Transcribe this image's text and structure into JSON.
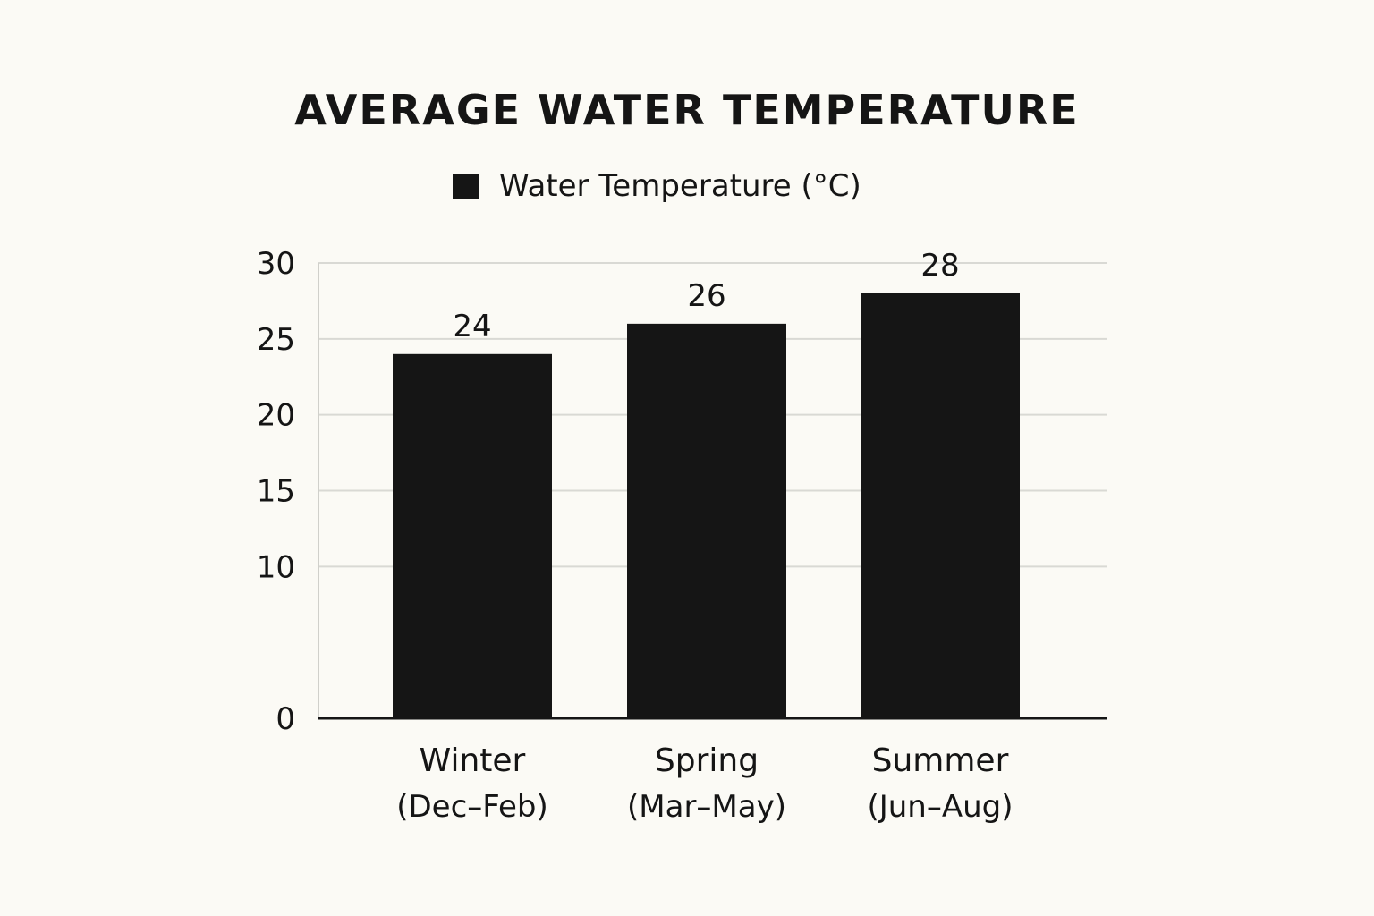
{
  "chart_data": {
    "type": "bar",
    "title": "AVERAGE WATER TEMPERATURE",
    "xlabel": "",
    "ylabel": "",
    "ylim": [
      0,
      30
    ],
    "yticks": [
      0,
      10,
      15,
      20,
      25,
      30
    ],
    "grid": true,
    "legend_position": "top-center",
    "categories": [
      {
        "line1": "Winter",
        "line2": "(Dec–Feb)"
      },
      {
        "line1": "Spring",
        "line2": "(Mar–May)"
      },
      {
        "line1": "Summer",
        "line2": "(Jun–Aug)"
      }
    ],
    "series": [
      {
        "name": "Water Temperature (°C)",
        "color": "#151515",
        "values": [
          24,
          26,
          28
        ]
      }
    ]
  }
}
